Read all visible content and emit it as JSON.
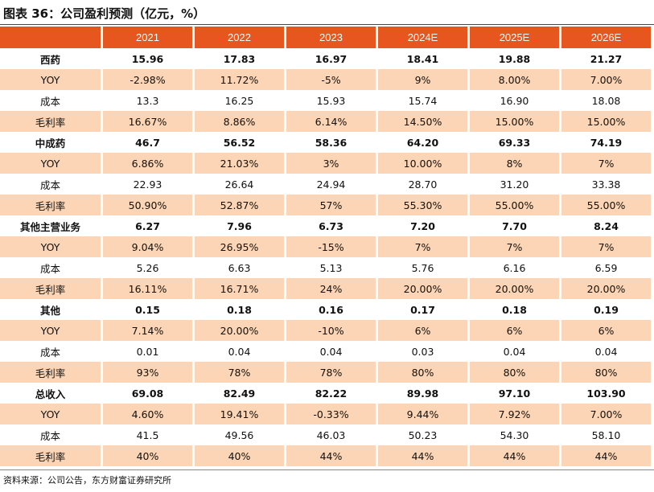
{
  "header": {
    "title": "图表 36：公司盈利预测（亿元，%）"
  },
  "table": {
    "columns": [
      "2021",
      "2022",
      "2023",
      "2024E",
      "2025E",
      "2026E"
    ],
    "rows": [
      {
        "label": "西药",
        "values": [
          "15.96",
          "17.83",
          "16.97",
          "18.41",
          "19.88",
          "21.27"
        ]
      },
      {
        "label": "YOY",
        "values": [
          "-2.98%",
          "11.72%",
          "-5%",
          "9%",
          "8.00%",
          "7.00%"
        ]
      },
      {
        "label": "成本",
        "values": [
          "13.3",
          "16.25",
          "15.93",
          "15.74",
          "16.90",
          "18.08"
        ]
      },
      {
        "label": "毛利率",
        "values": [
          "16.67%",
          "8.86%",
          "6.14%",
          "14.50%",
          "15.00%",
          "15.00%"
        ]
      },
      {
        "label": "中成药",
        "values": [
          "46.7",
          "56.52",
          "58.36",
          "64.20",
          "69.33",
          "74.19"
        ]
      },
      {
        "label": "YOY",
        "values": [
          "6.86%",
          "21.03%",
          "3%",
          "10.00%",
          "8%",
          "7%"
        ]
      },
      {
        "label": "成本",
        "values": [
          "22.93",
          "26.64",
          "24.94",
          "28.70",
          "31.20",
          "33.38"
        ]
      },
      {
        "label": "毛利率",
        "values": [
          "50.90%",
          "52.87%",
          "57%",
          "55.30%",
          "55.00%",
          "55.00%"
        ]
      },
      {
        "label": "其他主营业务",
        "values": [
          "6.27",
          "7.96",
          "6.73",
          "7.20",
          "7.70",
          "8.24"
        ]
      },
      {
        "label": "YOY",
        "values": [
          "9.04%",
          "26.95%",
          "-15%",
          "7%",
          "7%",
          "7%"
        ]
      },
      {
        "label": "成本",
        "values": [
          "5.26",
          "6.63",
          "5.13",
          "5.76",
          "6.16",
          "6.59"
        ]
      },
      {
        "label": "毛利率",
        "values": [
          "16.11%",
          "16.71%",
          "24%",
          "20.00%",
          "20.00%",
          "20.00%"
        ]
      },
      {
        "label": "其他",
        "values": [
          "0.15",
          "0.18",
          "0.16",
          "0.17",
          "0.18",
          "0.19"
        ]
      },
      {
        "label": "YOY",
        "values": [
          "7.14%",
          "20.00%",
          "-10%",
          "6%",
          "6%",
          "6%"
        ]
      },
      {
        "label": "成本",
        "values": [
          "0.01",
          "0.04",
          "0.04",
          "0.03",
          "0.04",
          "0.04"
        ]
      },
      {
        "label": "毛利率",
        "values": [
          "93%",
          "78%",
          "78%",
          "80%",
          "80%",
          "80%"
        ]
      },
      {
        "label": "总收入",
        "values": [
          "69.08",
          "82.49",
          "82.22",
          "89.98",
          "97.10",
          "103.90"
        ]
      },
      {
        "label": "YOY",
        "values": [
          "4.60%",
          "19.41%",
          "-0.33%",
          "9.44%",
          "7.92%",
          "7.00%"
        ]
      },
      {
        "label": "成本",
        "values": [
          "41.5",
          "49.56",
          "46.03",
          "50.23",
          "54.30",
          "58.10"
        ]
      },
      {
        "label": "毛利率",
        "values": [
          "40%",
          "40%",
          "44%",
          "44%",
          "44%",
          "44%"
        ]
      }
    ]
  },
  "footer": {
    "source": "资料来源：公司公告，东方财富证券研究所"
  }
}
